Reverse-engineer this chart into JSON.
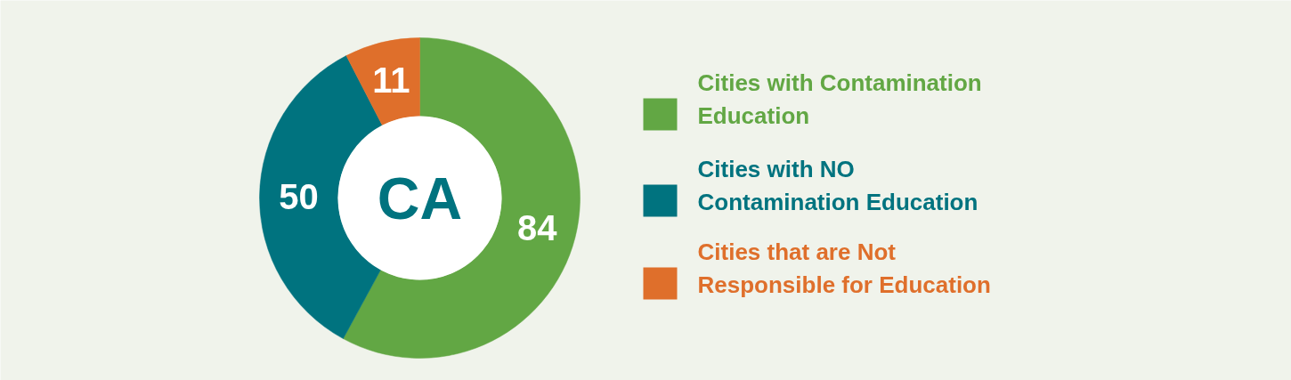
{
  "chart_data": {
    "type": "donut",
    "categories": [
      "Cities with Contamination Education",
      "Cities with NO Contamination Education",
      "Cities that are Not Responsible for Education"
    ],
    "values": [
      84,
      50,
      11
    ],
    "colors": [
      "#62a744",
      "#00737f",
      "#df6f2b"
    ],
    "data_labels": true,
    "legend": "right",
    "annotations": [
      "CA"
    ]
  }
}
